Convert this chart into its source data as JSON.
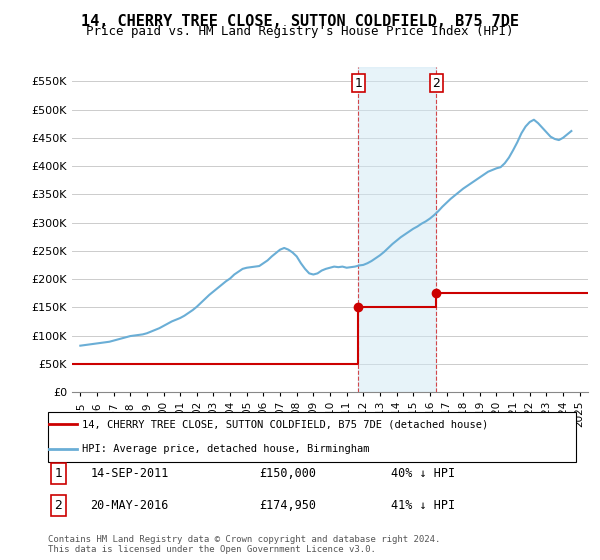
{
  "title": "14, CHERRY TREE CLOSE, SUTTON COLDFIELD, B75 7DE",
  "subtitle": "Price paid vs. HM Land Registry's House Price Index (HPI)",
  "title_fontsize": 12,
  "subtitle_fontsize": 10,
  "hpi_color": "#6aaed6",
  "price_color": "#cc0000",
  "sale1_date_num": 2011.71,
  "sale1_price": 150000,
  "sale1_label": "1",
  "sale1_date_str": "14-SEP-2011",
  "sale2_date_num": 2016.38,
  "sale2_price": 174950,
  "sale2_label": "2",
  "sale2_date_str": "20-MAY-2016",
  "ylim": [
    0,
    575000
  ],
  "xlim": [
    1994.5,
    2025.5
  ],
  "yticks": [
    0,
    50000,
    100000,
    150000,
    200000,
    250000,
    300000,
    350000,
    400000,
    450000,
    500000,
    550000
  ],
  "ytick_labels": [
    "£0",
    "£50K",
    "£100K",
    "£150K",
    "£200K",
    "£250K",
    "£300K",
    "£350K",
    "£400K",
    "£450K",
    "£500K",
    "£550K"
  ],
  "xticks": [
    1995,
    1996,
    1997,
    1998,
    1999,
    2000,
    2001,
    2002,
    2003,
    2004,
    2005,
    2006,
    2007,
    2008,
    2009,
    2010,
    2011,
    2012,
    2013,
    2014,
    2015,
    2016,
    2017,
    2018,
    2019,
    2020,
    2021,
    2022,
    2023,
    2024,
    2025
  ],
  "legend_sale_label": "14, CHERRY TREE CLOSE, SUTTON COLDFIELD, B75 7DE (detached house)",
  "legend_hpi_label": "HPI: Average price, detached house, Birmingham",
  "annotation1": "1     14-SEP-2011     £150,000     40% ↓ HPI",
  "annotation2": "2     20-MAY-2016     £174,950     41% ↓ HPI",
  "footer": "Contains HM Land Registry data © Crown copyright and database right 2024.\nThis data is licensed under the Open Government Licence v3.0.",
  "hpi_years": [
    1995,
    1995.25,
    1995.5,
    1995.75,
    1996,
    1996.25,
    1996.5,
    1996.75,
    1997,
    1997.25,
    1997.5,
    1997.75,
    1998,
    1998.25,
    1998.5,
    1998.75,
    1999,
    1999.25,
    1999.5,
    1999.75,
    2000,
    2000.25,
    2000.5,
    2000.75,
    2001,
    2001.25,
    2001.5,
    2001.75,
    2002,
    2002.25,
    2002.5,
    2002.75,
    2003,
    2003.25,
    2003.5,
    2003.75,
    2004,
    2004.25,
    2004.5,
    2004.75,
    2005,
    2005.25,
    2005.5,
    2005.75,
    2006,
    2006.25,
    2006.5,
    2006.75,
    2007,
    2007.25,
    2007.5,
    2007.75,
    2008,
    2008.25,
    2008.5,
    2008.75,
    2009,
    2009.25,
    2009.5,
    2009.75,
    2010,
    2010.25,
    2010.5,
    2010.75,
    2011,
    2011.25,
    2011.5,
    2011.75,
    2012,
    2012.25,
    2012.5,
    2012.75,
    2013,
    2013.25,
    2013.5,
    2013.75,
    2014,
    2014.25,
    2014.5,
    2014.75,
    2015,
    2015.25,
    2015.5,
    2015.75,
    2016,
    2016.25,
    2016.5,
    2016.75,
    2017,
    2017.25,
    2017.5,
    2017.75,
    2018,
    2018.25,
    2018.5,
    2018.75,
    2019,
    2019.25,
    2019.5,
    2019.75,
    2020,
    2020.25,
    2020.5,
    2020.75,
    2021,
    2021.25,
    2021.5,
    2021.75,
    2022,
    2022.25,
    2022.5,
    2022.75,
    2023,
    2023.25,
    2023.5,
    2023.75,
    2024,
    2024.25,
    2024.5
  ],
  "hpi_values": [
    82000,
    83000,
    84000,
    85000,
    86000,
    87000,
    88000,
    89000,
    91000,
    93000,
    95000,
    97000,
    99000,
    100000,
    101000,
    102000,
    104000,
    107000,
    110000,
    113000,
    117000,
    121000,
    125000,
    128000,
    131000,
    135000,
    140000,
    145000,
    151000,
    158000,
    165000,
    172000,
    178000,
    184000,
    190000,
    196000,
    201000,
    208000,
    213000,
    218000,
    220000,
    221000,
    222000,
    223000,
    228000,
    233000,
    240000,
    246000,
    252000,
    255000,
    252000,
    247000,
    240000,
    228000,
    218000,
    210000,
    208000,
    210000,
    215000,
    218000,
    220000,
    222000,
    221000,
    222000,
    220000,
    221000,
    222000,
    224000,
    225000,
    228000,
    232000,
    237000,
    242000,
    248000,
    255000,
    262000,
    268000,
    274000,
    279000,
    284000,
    289000,
    293000,
    298000,
    302000,
    307000,
    313000,
    320000,
    328000,
    335000,
    342000,
    348000,
    354000,
    360000,
    365000,
    370000,
    375000,
    380000,
    385000,
    390000,
    393000,
    396000,
    398000,
    405000,
    415000,
    428000,
    442000,
    458000,
    470000,
    478000,
    482000,
    476000,
    468000,
    460000,
    452000,
    448000,
    446000,
    450000,
    456000,
    462000
  ]
}
